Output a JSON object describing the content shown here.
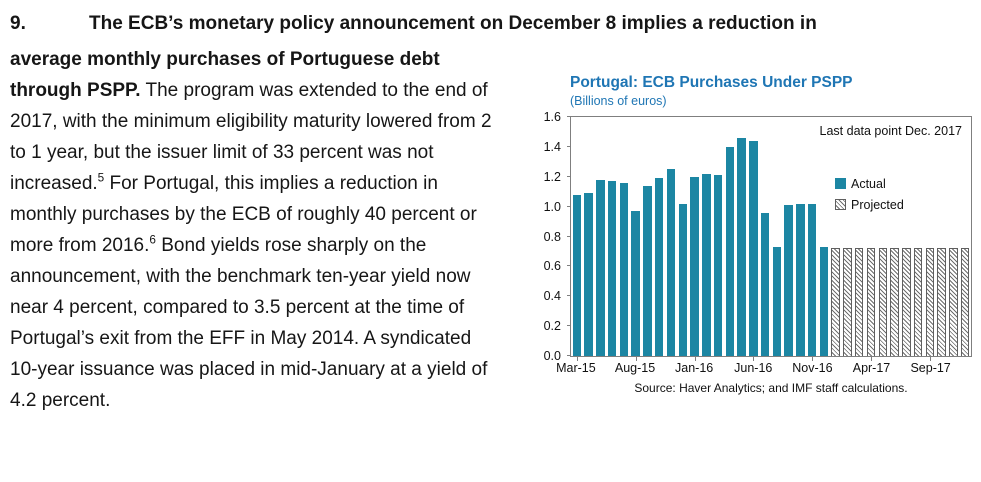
{
  "colors": {
    "title_blue": "#1F76B4",
    "bar_teal": "#1C86A3",
    "hatch_gray": "#6E6E6E",
    "axis_gray": "#7F7F7F"
  },
  "paragraph": {
    "number": "9.",
    "bold_intro_line": "The ECB’s monetary policy announcement on December 8 implies a reduction in",
    "bold_lead_rest": "average monthly purchases of Portuguese debt through PSPP.",
    "seg1": " The program was extended to the end of 2017, with the minimum eligibility maturity lowered from 2 to 1 year, but the issuer limit of 33 percent was not increased.",
    "fn1": "5",
    "seg2": " For Portugal, this implies a reduction in monthly purchases by the ECB of roughly 40 percent or more from 2016.",
    "fn2": "6",
    "seg3": " Bond yields rose sharply on the announcement, with the benchmark ten-year yield now near 4 percent, compared to 3.5 percent at the time of Portugal’s exit from the EFF in May 2014. A syndicated 10-year issuance was placed in mid-January at a yield of 4.2 percent."
  },
  "chart_data": {
    "type": "bar",
    "title": "Portugal: ECB Purchases Under PSPP",
    "subtitle": "(Billions of euros)",
    "annotation": "Last data point Dec. 2017",
    "source": "Source: Haver Analytics; and IMF staff calculations.",
    "ylim": [
      0,
      1.6
    ],
    "yticks": [
      "0.0",
      "0.2",
      "0.4",
      "0.6",
      "0.8",
      "1.0",
      "1.2",
      "1.4",
      "1.6"
    ],
    "grid": false,
    "legend_position": "inside-right",
    "categories": [
      "Mar-15",
      "Apr-15",
      "May-15",
      "Jun-15",
      "Jul-15",
      "Aug-15",
      "Sep-15",
      "Oct-15",
      "Nov-15",
      "Dec-15",
      "Jan-16",
      "Feb-16",
      "Mar-16",
      "Apr-16",
      "May-16",
      "Jun-16",
      "Jul-16",
      "Aug-16",
      "Sep-16",
      "Oct-16",
      "Nov-16",
      "Dec-16",
      "Jan-17",
      "Feb-17",
      "Mar-17",
      "Apr-17",
      "May-17",
      "Jun-17",
      "Jul-17",
      "Aug-17",
      "Sep-17",
      "Oct-17",
      "Nov-17",
      "Dec-17"
    ],
    "series": [
      {
        "name": "Actual",
        "style": "solid",
        "values": [
          1.08,
          1.09,
          1.18,
          1.17,
          1.16,
          0.97,
          1.14,
          1.19,
          1.25,
          1.02,
          1.2,
          1.22,
          1.21,
          1.4,
          1.46,
          1.44,
          0.96,
          0.73,
          1.01,
          1.02,
          1.02,
          0.73,
          null,
          null,
          null,
          null,
          null,
          null,
          null,
          null,
          null,
          null,
          null,
          null
        ]
      },
      {
        "name": "Projected",
        "style": "hatched",
        "values": [
          null,
          null,
          null,
          null,
          null,
          null,
          null,
          null,
          null,
          null,
          null,
          null,
          null,
          null,
          null,
          null,
          null,
          null,
          null,
          null,
          null,
          null,
          0.72,
          0.72,
          0.72,
          0.72,
          0.72,
          0.72,
          0.72,
          0.72,
          0.72,
          0.72,
          0.72,
          0.72
        ]
      }
    ],
    "xtick_indices": [
      0,
      5,
      10,
      15,
      20,
      25,
      30
    ],
    "xtick_labels": [
      "Mar-15",
      "Aug-15",
      "Jan-16",
      "Jun-16",
      "Nov-16",
      "Apr-17",
      "Sep-17"
    ]
  }
}
